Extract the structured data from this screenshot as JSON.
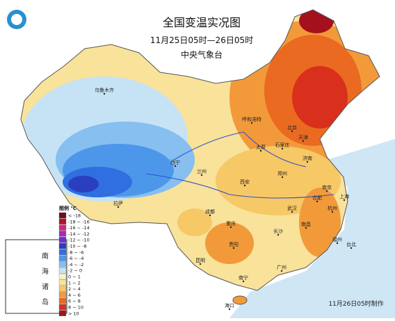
{
  "header": {
    "title": "全国变温实况图",
    "subtitle": "11月25日05时—26日05时",
    "agency": "中央气象台"
  },
  "legend": {
    "title": "图例 ℃",
    "items": [
      {
        "label": "< -18",
        "color": "#6b0f1a"
      },
      {
        "label": "-18 ~ -16",
        "color": "#b0122a"
      },
      {
        "label": "-16 ~ -14",
        "color": "#d6287a"
      },
      {
        "label": "-14 ~ -12",
        "color": "#a52ac0"
      },
      {
        "label": "-12 ~ -10",
        "color": "#6e2fd0"
      },
      {
        "label": "-10 ~ -8",
        "color": "#2a3fbf"
      },
      {
        "label": "-8 ~ -6",
        "color": "#2f6fe0"
      },
      {
        "label": "-6 ~ -4",
        "color": "#4d97ea"
      },
      {
        "label": "-4 ~ -2",
        "color": "#86bff0"
      },
      {
        "label": "-2 ~ 0",
        "color": "#c6e3f5"
      },
      {
        "label": "0 ~ 1",
        "color": "#fbf4c6"
      },
      {
        "label": "1 ~ 2",
        "color": "#f9e29a"
      },
      {
        "label": "2 ~ 4",
        "color": "#f7c866"
      },
      {
        "label": "4 ~ 6",
        "color": "#f29a3a"
      },
      {
        "label": "6 ~ 8",
        "color": "#ea6a22"
      },
      {
        "label": "8 ~ 10",
        "color": "#d8301c"
      },
      {
        "label": "> 10",
        "color": "#a4101c"
      }
    ]
  },
  "cities": [
    "乌鲁木齐",
    "呼和浩特",
    "北京",
    "天津",
    "石家庄",
    "太原",
    "济南",
    "西宁",
    "兰州",
    "西安",
    "郑州",
    "合肥",
    "南京",
    "上海",
    "杭州",
    "武汉",
    "成都",
    "重庆",
    "拉萨",
    "贵阳",
    "长沙",
    "南昌",
    "福州",
    "昆明",
    "南宁",
    "广州",
    "台北",
    "海口"
  ],
  "inset_label": [
    "南",
    "海",
    "诸",
    "岛"
  ],
  "footer": "11月26日05时制作"
}
